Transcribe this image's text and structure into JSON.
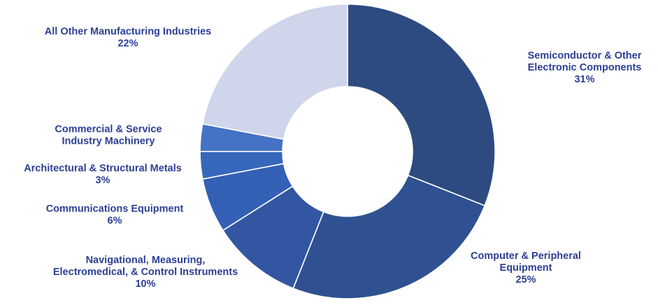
{
  "chart_data": {
    "type": "pie",
    "variant": "donut",
    "start_angle_deg": 0,
    "direction": "clockwise",
    "legend": "none",
    "slices": [
      {
        "label": "Semiconductor & Other Electronic Components",
        "label_lines": [
          "Semiconductor & Other",
          "Electronic Components"
        ],
        "value": 31,
        "value_label": "31%",
        "color": "#2d4b80"
      },
      {
        "label": "Computer & Peripheral Equipment",
        "label_lines": [
          "Computer & Peripheral",
          "Equipment"
        ],
        "value": 25,
        "value_label": "25%",
        "color": "#2f5191"
      },
      {
        "label": "Navigational, Measuring, Electromedical, & Control Instruments",
        "label_lines": [
          "Navigational, Measuring,",
          "Electromedical, & Control Instruments"
        ],
        "value": 10,
        "value_label": "10%",
        "color": "#3256a2"
      },
      {
        "label": "Communications Equipment",
        "label_lines": [
          "Communications Equipment"
        ],
        "value": 6,
        "value_label": "6%",
        "color": "#3460b5"
      },
      {
        "label": "Architectural & Structural Metals",
        "label_lines": [
          "Architectural & Structural Metals"
        ],
        "value": 3,
        "value_label": "3%",
        "color": "#3767bb"
      },
      {
        "label": "Commercial & Service Industry Machinery",
        "label_lines": [
          "Commercial & Service",
          "Industry Machinery"
        ],
        "value": 3,
        "value_label": "",
        "color": "#4472c4"
      },
      {
        "label": "All Other Manufacturing Industries",
        "label_lines": [
          "All Other Manufacturing Industries"
        ],
        "value": 22,
        "value_label": "22%",
        "color": "#cfd5ea"
      }
    ]
  }
}
